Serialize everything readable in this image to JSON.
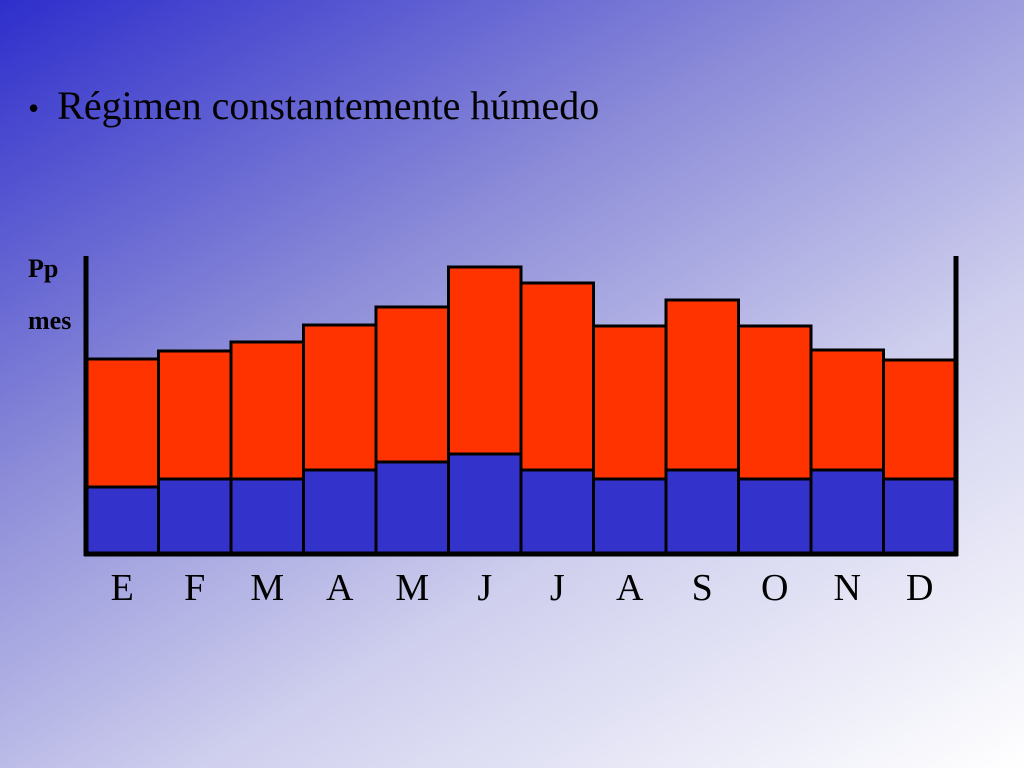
{
  "slide": {
    "bullet": "•",
    "title": "Régimen constantemente húmedo"
  },
  "chart_data": {
    "type": "bar",
    "stacked": true,
    "categories": [
      "E",
      "F",
      "M",
      "A",
      "M",
      "J",
      "J",
      "A",
      "S",
      "O",
      "N",
      "D"
    ],
    "series": [
      {
        "color": "#3333cc",
        "values": [
          67,
          75,
          75,
          84,
          92,
          100,
          84,
          75,
          84,
          75,
          84,
          75
        ]
      },
      {
        "color": "#ff3300",
        "values": [
          128,
          128,
          137,
          145,
          155,
          187,
          187,
          153,
          170,
          153,
          120,
          119
        ]
      }
    ],
    "ylabel_lines": [
      "Pp",
      "mes"
    ],
    "xlabel": "",
    "grid": false,
    "legend": false
  }
}
